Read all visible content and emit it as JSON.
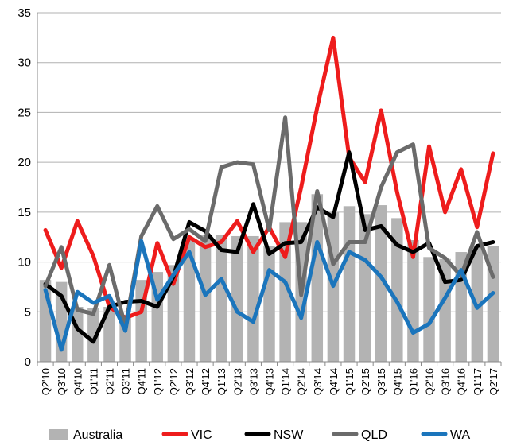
{
  "chart_data": {
    "type": "bar+line",
    "title": "",
    "xlabel": "",
    "ylabel": "",
    "ylim": [
      0,
      35
    ],
    "yticks": [
      0,
      5,
      10,
      15,
      20,
      25,
      30,
      35
    ],
    "grid": "horizontal",
    "legend_position": "bottom",
    "categories": [
      "Q2'10",
      "Q3'10",
      "Q4'10",
      "Q1'11",
      "Q2'11",
      "Q3'11",
      "Q4'11",
      "Q1'12",
      "Q2'12",
      "Q3'12",
      "Q4'12",
      "Q1'13",
      "Q2'13",
      "Q3'13",
      "Q4'13",
      "Q1'14",
      "Q2'14",
      "Q3'14",
      "Q4'14",
      "Q1'15",
      "Q2'15",
      "Q3'15",
      "Q4'15",
      "Q1'16",
      "Q2'16",
      "Q3'16",
      "Q4'16",
      "Q1'17",
      "Q2'17"
    ],
    "bars": {
      "name": "Australia",
      "color": "#b3b3b3",
      "values": [
        8.2,
        8.0,
        5.5,
        5.4,
        5.5,
        4.7,
        8.2,
        9.0,
        9.7,
        12.2,
        12.7,
        12.7,
        12.6,
        12.6,
        11.6,
        14.0,
        14.0,
        16.8,
        15.0,
        15.6,
        14.8,
        15.7,
        14.4,
        12.2,
        10.5,
        10.3,
        11.0,
        11.6,
        11.6
      ]
    },
    "series": [
      {
        "name": "VIC",
        "color": "#ee1c1c",
        "values": [
          13.2,
          9.4,
          14.1,
          10.6,
          5.5,
          4.4,
          5.0,
          11.9,
          7.8,
          12.5,
          11.5,
          12.0,
          14.1,
          11.0,
          13.5,
          10.5,
          17.5,
          25.5,
          32.5,
          20.5,
          18.0,
          25.2,
          17.0,
          10.5,
          21.6,
          15.0,
          19.3,
          13.5,
          20.9
        ]
      },
      {
        "name": "NSW",
        "color": "#000000",
        "values": [
          7.8,
          6.6,
          3.3,
          2.0,
          5.5,
          6.0,
          6.1,
          5.5,
          8.5,
          14.0,
          13.1,
          11.2,
          11.0,
          15.8,
          10.8,
          11.9,
          12.0,
          15.5,
          14.5,
          21.0,
          13.2,
          13.6,
          11.7,
          11.0,
          11.9,
          8.0,
          8.2,
          11.6,
          12.0
        ]
      },
      {
        "name": "QLD",
        "color": "#6b6b6b",
        "values": [
          7.6,
          11.5,
          5.2,
          4.8,
          9.7,
          3.5,
          12.6,
          15.6,
          12.3,
          13.3,
          12.1,
          19.5,
          20.0,
          19.8,
          13.2,
          24.5,
          6.7,
          17.1,
          9.8,
          12.0,
          12.0,
          17.5,
          21.0,
          21.8,
          11.4,
          10.4,
          8.6,
          13.0,
          8.5
        ]
      },
      {
        "name": "WA",
        "color": "#1b75bc",
        "values": [
          7.2,
          1.2,
          7.0,
          5.9,
          6.6,
          3.1,
          12.1,
          6.2,
          8.7,
          11.0,
          6.7,
          8.3,
          5.0,
          4.0,
          9.2,
          8.0,
          4.4,
          12.0,
          7.6,
          11.0,
          10.2,
          8.5,
          6.0,
          2.9,
          3.8,
          6.4,
          9.2,
          5.4,
          6.9
        ]
      }
    ]
  }
}
